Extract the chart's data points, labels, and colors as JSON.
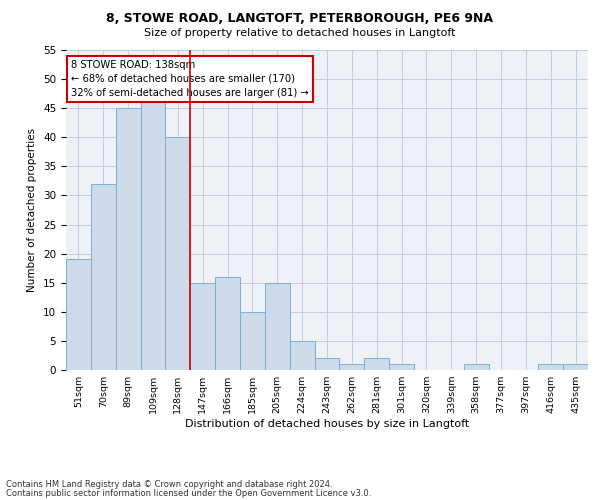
{
  "title_line1": "8, STOWE ROAD, LANGTOFT, PETERBOROUGH, PE6 9NA",
  "title_line2": "Size of property relative to detached houses in Langtoft",
  "xlabel": "Distribution of detached houses by size in Langtoft",
  "ylabel": "Number of detached properties",
  "categories": [
    "51sqm",
    "70sqm",
    "89sqm",
    "109sqm",
    "128sqm",
    "147sqm",
    "166sqm",
    "185sqm",
    "205sqm",
    "224sqm",
    "243sqm",
    "262sqm",
    "281sqm",
    "301sqm",
    "320sqm",
    "339sqm",
    "358sqm",
    "377sqm",
    "397sqm",
    "416sqm",
    "435sqm"
  ],
  "values": [
    19,
    32,
    45,
    46,
    40,
    15,
    16,
    10,
    15,
    5,
    2,
    1,
    2,
    1,
    0,
    0,
    1,
    0,
    0,
    1,
    1
  ],
  "bar_color": "#ccdaea",
  "bar_edge_color": "#7bafd4",
  "grid_color": "#b8c8d8",
  "vline_x": 4.5,
  "vline_color": "#cc0000",
  "annotation_box_text": "8 STOWE ROAD: 138sqm\n← 68% of detached houses are smaller (170)\n32% of semi-detached houses are larger (81) →",
  "annotation_box_color": "#cc0000",
  "ylim": [
    0,
    55
  ],
  "yticks": [
    0,
    5,
    10,
    15,
    20,
    25,
    30,
    35,
    40,
    45,
    50,
    55
  ],
  "footnote_line1": "Contains HM Land Registry data © Crown copyright and database right 2024.",
  "footnote_line2": "Contains public sector information licensed under the Open Government Licence v3.0.",
  "bg_color": "#ffffff",
  "plot_bg_color": "#eef2f7"
}
